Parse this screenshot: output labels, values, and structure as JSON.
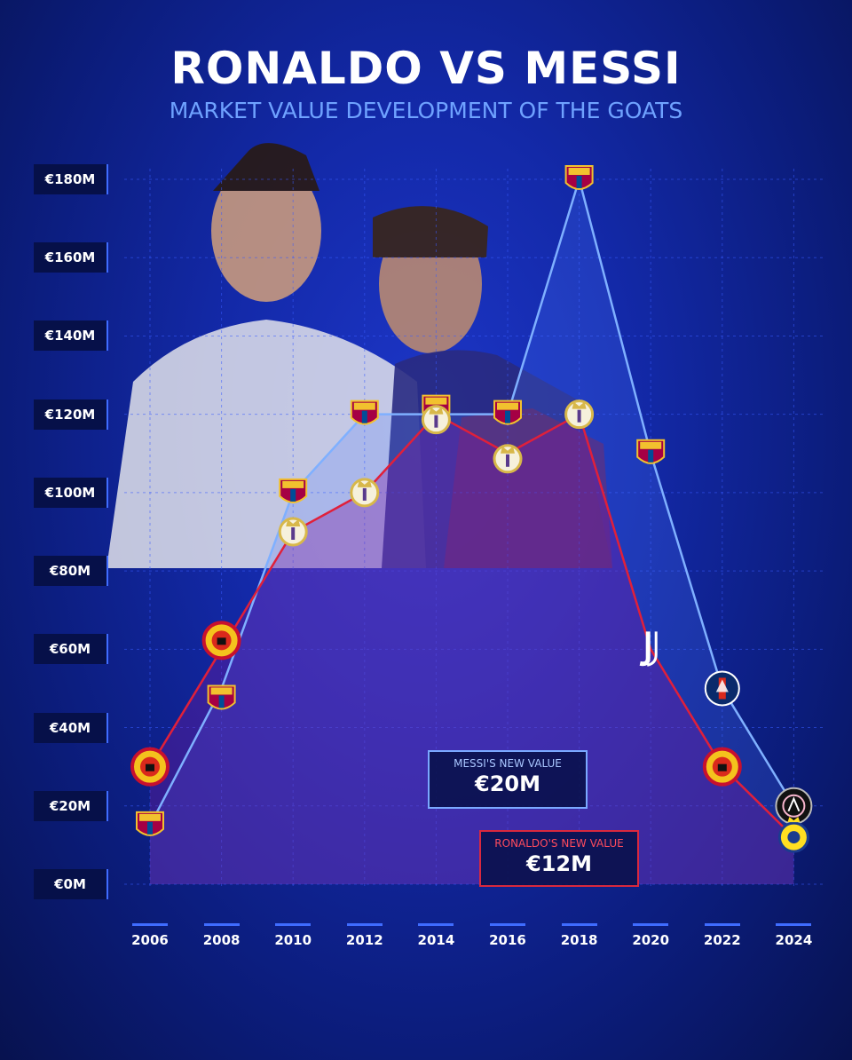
{
  "title": "RONALDO VS MESSI",
  "subtitle": "MARKET VALUE DEVELOPMENT OF THE GOATS",
  "colors": {
    "messi_line": "#7fb0ff",
    "ronaldo_line": "#e0203a",
    "grid": "#3a5cff",
    "barcelona": "#a50044",
    "real_madrid": "#e8d37a",
    "man_utd": "#da291c"
  },
  "chart_data": {
    "type": "line",
    "x": [
      "2006",
      "2008",
      "2010",
      "2012",
      "2014",
      "2016",
      "2018",
      "2020",
      "2022",
      "2024"
    ],
    "ylim": [
      0,
      180
    ],
    "y_ticks": [
      "€0M",
      "€20M",
      "€40M",
      "€60M",
      "€80M",
      "€100M",
      "€120M",
      "€140M",
      "€160M",
      "€180M"
    ],
    "grid": true,
    "series": [
      {
        "values": [
          15,
          50,
          100,
          120,
          120,
          120,
          180,
          110,
          50,
          20
        ],
        "clubs": [
          "barcelona",
          "barcelona",
          "barcelona",
          "barcelona",
          "barcelona",
          "barcelona",
          "barcelona",
          "barcelona",
          "psg",
          "inter-miami"
        ]
      },
      {
        "values": [
          30,
          60,
          90,
          100,
          120,
          110,
          120,
          60,
          30,
          12
        ],
        "clubs": [
          "man-utd",
          "man-utd",
          "real-madrid",
          "real-madrid",
          "real-madrid",
          "real-madrid",
          "real-madrid",
          "juventus",
          "man-utd",
          "al-nassr"
        ]
      }
    ],
    "annotations": [
      {
        "label": "MESSI'S NEW VALUE",
        "value": "€20M"
      },
      {
        "label": "RONALDO'S NEW VALUE",
        "value": "€12M"
      }
    ]
  }
}
